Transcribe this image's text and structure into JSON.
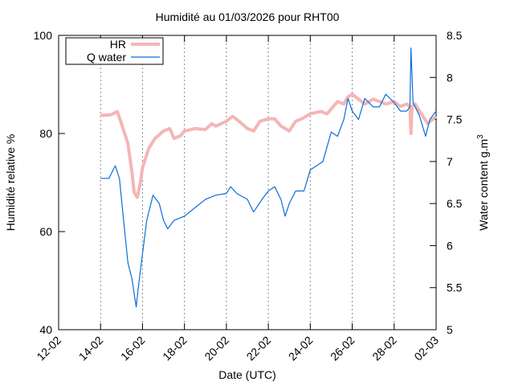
{
  "chart_data": {
    "type": "line",
    "title": "Humidité au 01/03/2026 pour RHT00",
    "xlabel": "Date (UTC)",
    "ylabel": "Humidité relative %",
    "y2label": {
      "text": "Water content g.m",
      "superscript": "3"
    },
    "xlim": [
      12,
      30
    ],
    "xticks": [
      {
        "value": 12,
        "label": "12-02"
      },
      {
        "value": 14,
        "label": "14-02"
      },
      {
        "value": 16,
        "label": "16-02"
      },
      {
        "value": 18,
        "label": "18-02"
      },
      {
        "value": 20,
        "label": "20-02"
      },
      {
        "value": 22,
        "label": "22-02"
      },
      {
        "value": 24,
        "label": "24-02"
      },
      {
        "value": 26,
        "label": "26-02"
      },
      {
        "value": 28,
        "label": "28-02"
      },
      {
        "value": 30,
        "label": "02-03"
      }
    ],
    "ylim": [
      40,
      100
    ],
    "yticks": [
      40,
      60,
      80,
      100
    ],
    "y2lim": [
      5,
      8.5
    ],
    "y2ticks": [
      5,
      5.5,
      6,
      6.5,
      7,
      7.5,
      8,
      8.5
    ],
    "grid": "x",
    "legend": "top-left",
    "series": [
      {
        "name": "HR",
        "color": "#f4b6b6",
        "axis": "y",
        "x": [
          14,
          14.5,
          14.8,
          15,
          15.3,
          15.5,
          15.6,
          15.75,
          15.9,
          16,
          16.3,
          16.6,
          17,
          17.3,
          17.5,
          17.8,
          18,
          18.5,
          19,
          19.3,
          19.5,
          20,
          20.3,
          20.6,
          21,
          21.3,
          21.6,
          22,
          22.3,
          22.6,
          23,
          23.3,
          23.6,
          24,
          24.5,
          24.8,
          25,
          25.3,
          25.6,
          25.8,
          26,
          26.3,
          26.6,
          27,
          27.3,
          27.6,
          28,
          28.3,
          28.6,
          28.75,
          28.8,
          28.85,
          29,
          29.3,
          29.6,
          30
        ],
        "values": [
          83.7,
          83.8,
          84.5,
          82,
          78,
          72,
          68,
          67,
          70,
          73,
          77,
          79,
          80.5,
          81,
          79,
          79.5,
          80.5,
          81,
          80.8,
          82,
          81.5,
          82.5,
          83.5,
          82.5,
          81,
          80.5,
          82.5,
          83,
          83,
          81.5,
          80.5,
          82.5,
          83,
          84,
          84.5,
          84,
          85,
          86.5,
          86,
          87.5,
          88,
          87,
          86,
          87,
          86.5,
          86,
          86.5,
          85.5,
          86,
          85.5,
          80,
          85.5,
          86,
          84,
          82,
          83.5
        ]
      },
      {
        "name": "Q water",
        "color": "#0b6fd6",
        "axis": "y2",
        "x": [
          14,
          14.4,
          14.5,
          14.7,
          14.9,
          15.1,
          15.3,
          15.5,
          15.7,
          15.8,
          16,
          16.2,
          16.5,
          16.8,
          17,
          17.2,
          17.5,
          18,
          18.5,
          19,
          19.5,
          20,
          20.2,
          20.5,
          21,
          21.3,
          21.7,
          22,
          22.3,
          22.6,
          22.8,
          23,
          23.3,
          23.7,
          24,
          24.3,
          24.6,
          25,
          25.3,
          25.6,
          25.8,
          26,
          26.3,
          26.6,
          27,
          27.3,
          27.6,
          28,
          28.3,
          28.6,
          28.75,
          28.8,
          28.9,
          29.2,
          29.5,
          29.7,
          30
        ],
        "values": [
          6.8,
          6.8,
          6.85,
          6.95,
          6.8,
          6.3,
          5.8,
          5.6,
          5.27,
          5.5,
          5.9,
          6.3,
          6.6,
          6.5,
          6.3,
          6.2,
          6.3,
          6.35,
          6.45,
          6.55,
          6.6,
          6.62,
          6.7,
          6.62,
          6.55,
          6.4,
          6.55,
          6.65,
          6.7,
          6.55,
          6.35,
          6.5,
          6.65,
          6.65,
          6.9,
          6.95,
          7,
          7.35,
          7.3,
          7.5,
          7.75,
          7.6,
          7.5,
          7.75,
          7.65,
          7.65,
          7.8,
          7.7,
          7.6,
          7.6,
          7.65,
          8.35,
          7.7,
          7.55,
          7.3,
          7.5,
          7.6
        ]
      }
    ]
  }
}
